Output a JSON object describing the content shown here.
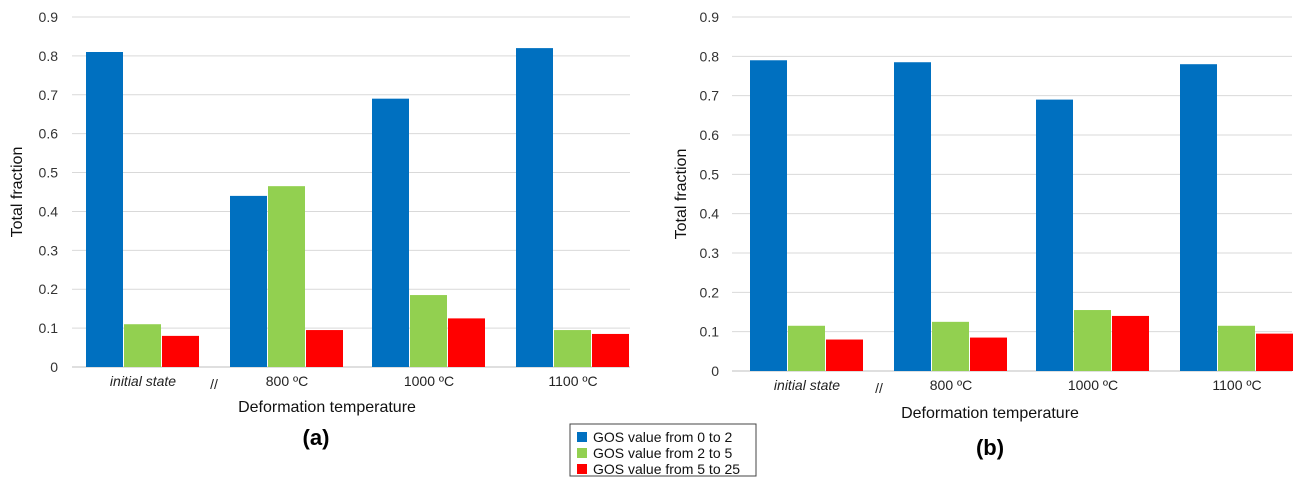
{
  "colors": {
    "gos_0_2": "#0070c0",
    "gos_2_5": "#92d050",
    "gos_5_25": "#ff0000",
    "grid": "#d9d9d9",
    "axis": "#bfbfbf"
  },
  "legend": {
    "items": [
      "GOS value from 0 to 2",
      "GOS value from 2 to 5",
      "GOS value from 5 to 25"
    ]
  },
  "chart_data": [
    {
      "type": "bar",
      "panel_label": "(a)",
      "title": "",
      "xlabel": "Deformation temperature",
      "ylabel": "Total fraction",
      "ylim": [
        0,
        0.9
      ],
      "yticks": [
        "0",
        "0.1",
        "0.2",
        "0.3",
        "0.4",
        "0.5",
        "0.6",
        "0.7",
        "0.8",
        "0.9"
      ],
      "grid": true,
      "categories": [
        "initial state",
        "800 ºC",
        "1000 ºC",
        "1100 ºC"
      ],
      "axis_break": "//",
      "series": [
        {
          "name": "GOS value from 0 to 2",
          "values": [
            0.81,
            0.44,
            0.69,
            0.82
          ]
        },
        {
          "name": "GOS value from 2 to 5",
          "values": [
            0.11,
            0.465,
            0.185,
            0.095
          ]
        },
        {
          "name": "GOS value from 5 to 25",
          "values": [
            0.08,
            0.095,
            0.125,
            0.085
          ]
        }
      ]
    },
    {
      "type": "bar",
      "panel_label": "(b)",
      "title": "",
      "xlabel": "Deformation temperature",
      "ylabel": "Total fraction",
      "ylim": [
        0,
        0.9
      ],
      "yticks": [
        "0",
        "0.1",
        "0.2",
        "0.3",
        "0.4",
        "0.5",
        "0.6",
        "0.7",
        "0.8",
        "0.9"
      ],
      "grid": true,
      "categories": [
        "initial state",
        "800 ºC",
        "1000 ºC",
        "1100 ºC"
      ],
      "axis_break": "//",
      "series": [
        {
          "name": "GOS value from 0 to 2",
          "values": [
            0.79,
            0.785,
            0.69,
            0.78
          ]
        },
        {
          "name": "GOS value from 2 to 5",
          "values": [
            0.115,
            0.125,
            0.155,
            0.115
          ]
        },
        {
          "name": "GOS value from 5 to 25",
          "values": [
            0.08,
            0.085,
            0.14,
            0.095
          ]
        }
      ]
    }
  ]
}
